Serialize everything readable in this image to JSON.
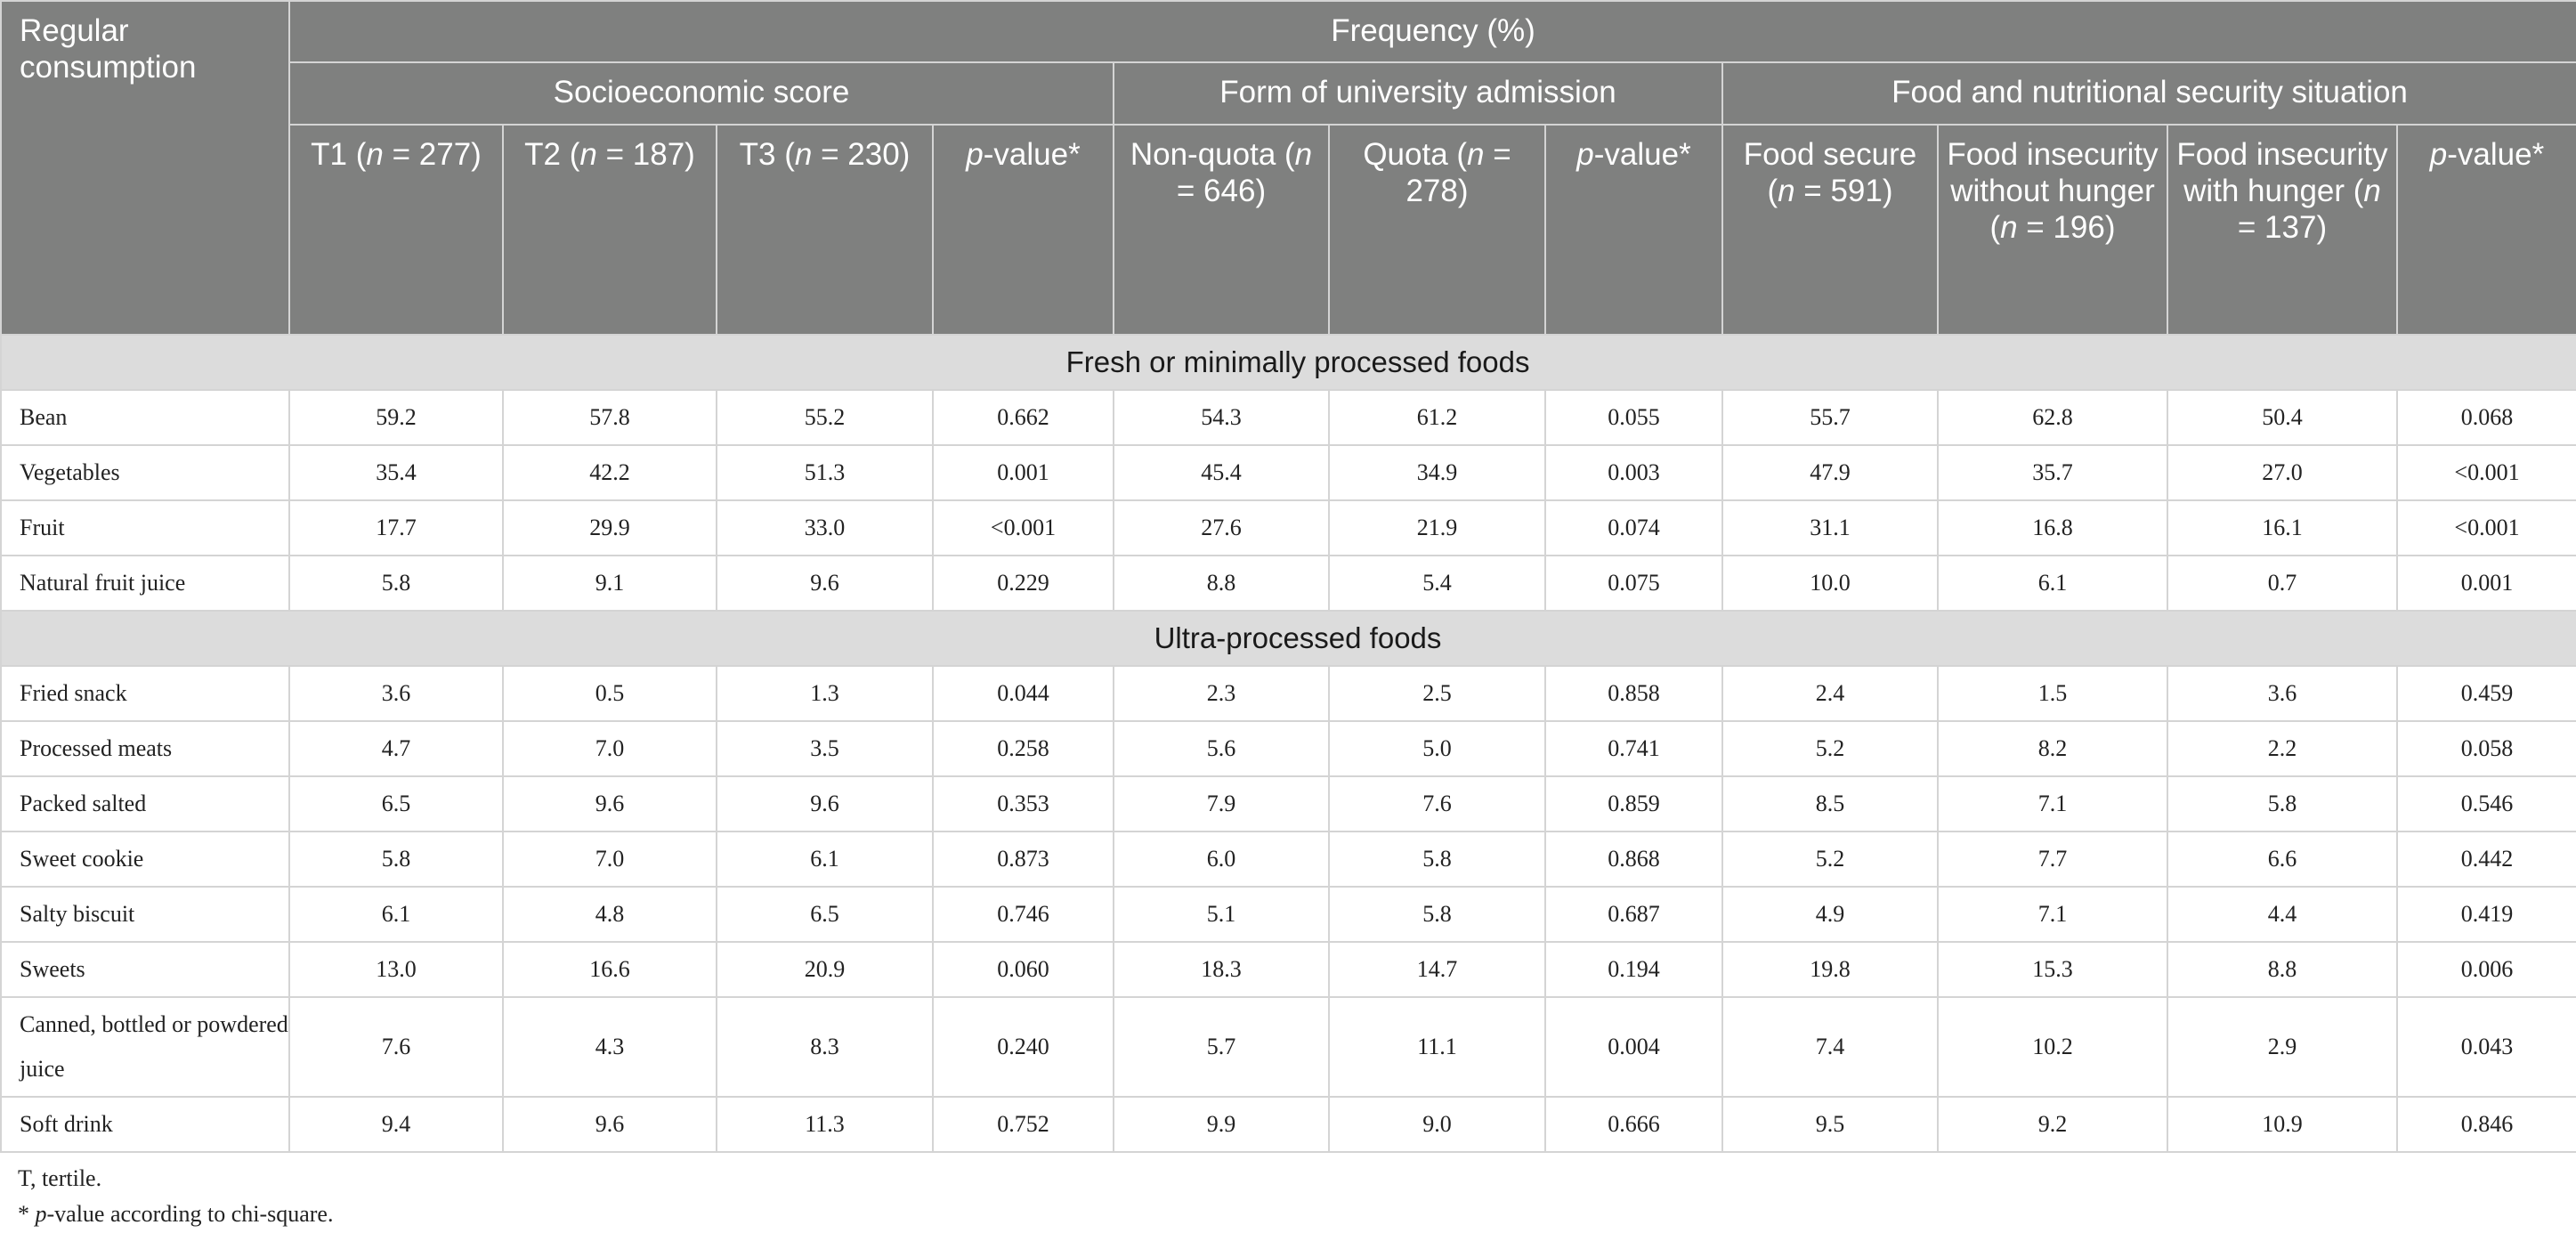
{
  "header": {
    "corner_label": "Regular consumption",
    "frequency_label": "Frequency (%)",
    "groups": [
      {
        "label": "Socioeconomic score"
      },
      {
        "label": "Form of university admission"
      },
      {
        "label": "Food and nutritional security situation"
      }
    ],
    "columns": [
      {
        "text": "T1 (n = 277)"
      },
      {
        "text": "T2 (n = 187)"
      },
      {
        "text": "T3 (n = 230)"
      },
      {
        "text": "p-value*"
      },
      {
        "text": "Non-quota (n = 646)"
      },
      {
        "text": "Quota (n = 278)"
      },
      {
        "text": "p-value*"
      },
      {
        "text": "Food secure (n = 591)"
      },
      {
        "text": "Food insecurity without hunger (n = 196)"
      },
      {
        "text": "Food insecurity with hunger (n = 137)"
      },
      {
        "text": "p-value*"
      }
    ]
  },
  "sections": [
    {
      "title": "Fresh or minimally processed foods",
      "rows": [
        {
          "label": "Bean",
          "values": [
            "59.2",
            "57.8",
            "55.2",
            "0.662",
            "54.3",
            "61.2",
            "0.055",
            "55.7",
            "62.8",
            "50.4",
            "0.068"
          ]
        },
        {
          "label": "Vegetables",
          "values": [
            "35.4",
            "42.2",
            "51.3",
            "0.001",
            "45.4",
            "34.9",
            "0.003",
            "47.9",
            "35.7",
            "27.0",
            "<0.001"
          ]
        },
        {
          "label": "Fruit",
          "values": [
            "17.7",
            "29.9",
            "33.0",
            "<0.001",
            "27.6",
            "21.9",
            "0.074",
            "31.1",
            "16.8",
            "16.1",
            "<0.001"
          ]
        },
        {
          "label": "Natural fruit juice",
          "values": [
            "5.8",
            "9.1",
            "9.6",
            "0.229",
            "8.8",
            "5.4",
            "0.075",
            "10.0",
            "6.1",
            "0.7",
            "0.001"
          ]
        }
      ]
    },
    {
      "title": "Ultra-processed foods",
      "rows": [
        {
          "label": "Fried snack",
          "values": [
            "3.6",
            "0.5",
            "1.3",
            "0.044",
            "2.3",
            "2.5",
            "0.858",
            "2.4",
            "1.5",
            "3.6",
            "0.459"
          ]
        },
        {
          "label": "Processed meats",
          "values": [
            "4.7",
            "7.0",
            "3.5",
            "0.258",
            "5.6",
            "5.0",
            "0.741",
            "5.2",
            "8.2",
            "2.2",
            "0.058"
          ]
        },
        {
          "label": "Packed salted",
          "values": [
            "6.5",
            "9.6",
            "9.6",
            "0.353",
            "7.9",
            "7.6",
            "0.859",
            "8.5",
            "7.1",
            "5.8",
            "0.546"
          ]
        },
        {
          "label": "Sweet cookie",
          "values": [
            "5.8",
            "7.0",
            "6.1",
            "0.873",
            "6.0",
            "5.8",
            "0.868",
            "5.2",
            "7.7",
            "6.6",
            "0.442"
          ]
        },
        {
          "label": "Salty biscuit",
          "values": [
            "6.1",
            "4.8",
            "6.5",
            "0.746",
            "5.1",
            "5.8",
            "0.687",
            "4.9",
            "7.1",
            "4.4",
            "0.419"
          ]
        },
        {
          "label": "Sweets",
          "values": [
            "13.0",
            "16.6",
            "20.9",
            "0.060",
            "18.3",
            "14.7",
            "0.194",
            "19.8",
            "15.3",
            "8.8",
            "0.006"
          ]
        },
        {
          "label": "Canned, bottled or powdered juice",
          "values": [
            "7.6",
            "4.3",
            "8.3",
            "0.240",
            "5.7",
            "11.1",
            "0.004",
            "7.4",
            "10.2",
            "2.9",
            "0.043"
          ]
        },
        {
          "label": "Soft drink",
          "values": [
            "9.4",
            "9.6",
            "11.3",
            "0.752",
            "9.9",
            "9.0",
            "0.666",
            "9.5",
            "9.2",
            "10.9",
            "0.846"
          ]
        }
      ]
    }
  ],
  "footnotes": {
    "tertile": "T, tertile.",
    "pvalue": "* p-value according to chi-square."
  },
  "colors": {
    "header_bg": "#7f807f",
    "section_bg": "#dcdcdc",
    "border": "#d4d4d4"
  }
}
